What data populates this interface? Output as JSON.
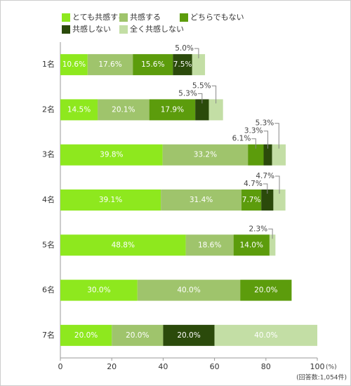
{
  "chart_data": {
    "type": "stacked-barh",
    "categories": [
      "1名",
      "2名",
      "3名",
      "4名",
      "5名",
      "6名",
      "7名"
    ],
    "series": [
      {
        "name": "とても共感する",
        "color": "#8ee81e",
        "values": [
          10.6,
          14.5,
          39.8,
          39.1,
          48.8,
          30.0,
          20.0
        ],
        "value_labels": [
          "10.6%",
          "14.5%",
          "39.8%",
          "39.1%",
          "48.8%",
          "30.0%",
          "20.0%"
        ]
      },
      {
        "name": "共感する",
        "color": "#9fc46c",
        "values": [
          17.6,
          20.1,
          33.2,
          31.4,
          18.6,
          40.0,
          20.0
        ],
        "value_labels": [
          "17.6%",
          "20.1%",
          "33.2%",
          "31.4%",
          "18.6%",
          "40.0%",
          "20.0%"
        ]
      },
      {
        "name": "どちらでもない",
        "color": "#5c9c0c",
        "values": [
          15.6,
          17.9,
          6.1,
          7.7,
          14.0,
          20.0,
          null
        ],
        "value_labels": [
          "15.6%",
          "17.9%",
          "6.1%",
          "7.7%",
          "14.0%",
          "20.0%",
          null
        ]
      },
      {
        "name": "共感しない",
        "color": "#2b4a0b",
        "values": [
          7.5,
          5.3,
          3.3,
          4.7,
          null,
          null,
          20.0
        ],
        "value_labels": [
          "7.5%",
          "5.3%",
          "3.3%",
          "4.7%",
          null,
          null,
          "20.0%"
        ]
      },
      {
        "name": "全く共感しない",
        "color": "#c3dea5",
        "values": [
          5.0,
          5.5,
          5.3,
          4.7,
          2.3,
          null,
          40.0
        ],
        "value_labels": [
          "5.0%",
          "5.5%",
          "5.3%",
          "4.7%",
          "2.3%",
          null,
          "40.0%"
        ]
      }
    ],
    "xlim": [
      0,
      100
    ],
    "xticks": [
      0,
      20,
      40,
      60,
      80,
      100
    ],
    "x_unit": "(%)",
    "note": "(回答数:1,054件)"
  }
}
